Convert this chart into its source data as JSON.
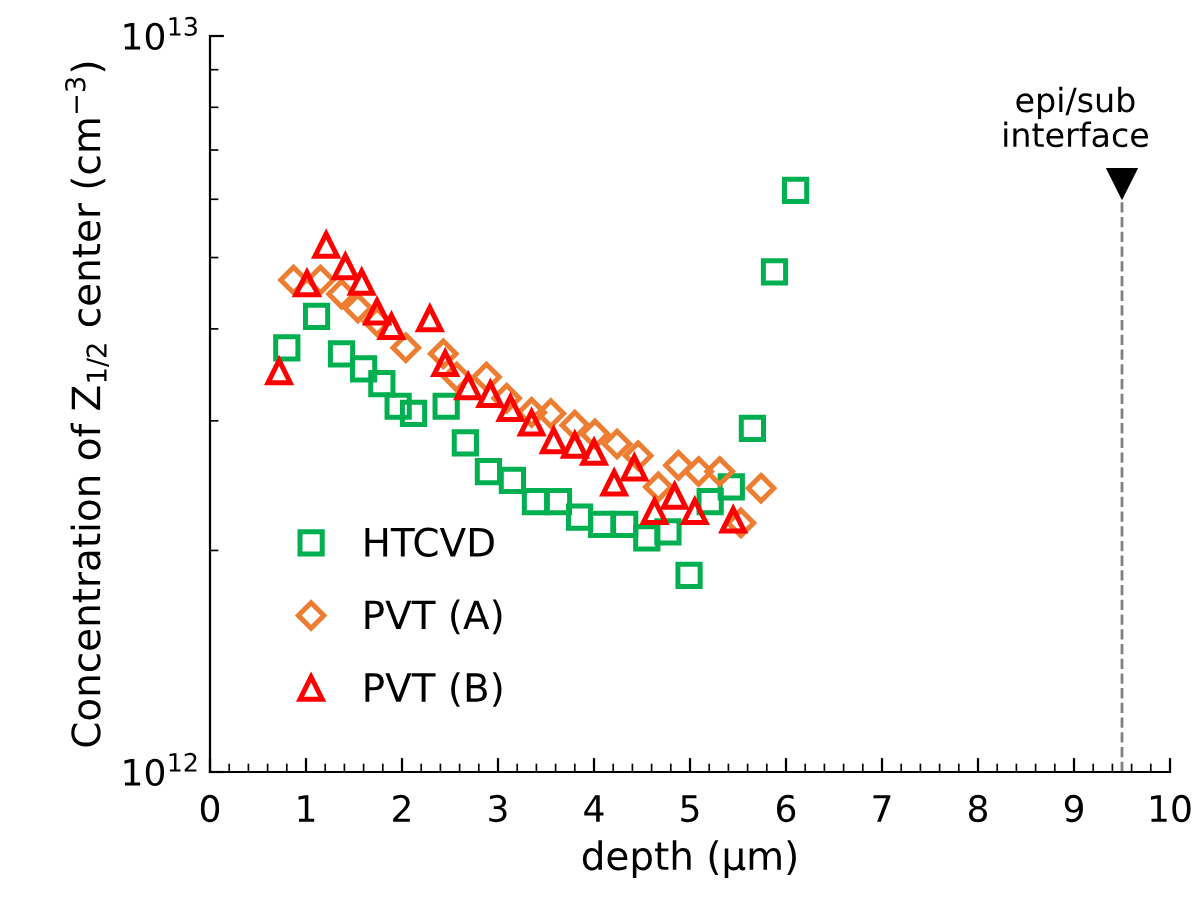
{
  "chart_data": {
    "type": "scatter",
    "xlabel": "depth (μm)",
    "ylabel": "Concentration of Z$_{1/2}$ center (cm$^{−3}$)",
    "log": "y",
    "xlim": [
      0,
      10
    ],
    "xticks": [
      0,
      1,
      2,
      3,
      4,
      5,
      6,
      7,
      8,
      9,
      10
    ],
    "ylim": [
      1000000000000.0,
      10000000000000.0
    ],
    "yticks": [
      {
        "value": 1000000000000.0,
        "label": "10$^{12}$"
      },
      {
        "value": 10000000000000.0,
        "label": "10$^{13}$"
      }
    ],
    "grid": false,
    "legend": "bottom left",
    "ref_lines": [
      {
        "axis": "x",
        "value": 9.5,
        "label": "epi/sub\ninterface",
        "color": "#808080",
        "line_style": "dashed"
      }
    ],
    "series": [
      {
        "name": "HTCVD",
        "color": "#00b050",
        "marker": "square",
        "x": [
          0.8,
          1.11,
          1.37,
          1.6,
          1.79,
          1.96,
          2.12,
          2.46,
          2.66,
          2.9,
          3.15,
          3.39,
          3.63,
          3.85,
          4.08,
          4.32,
          4.55,
          4.77,
          4.99,
          5.21,
          5.43,
          5.65,
          5.88,
          6.1
        ],
        "values": [
          3770000000000.0,
          4160000000000.0,
          3700000000000.0,
          3530000000000.0,
          3370000000000.0,
          3140000000000.0,
          3070000000000.0,
          3140000000000.0,
          2800000000000.0,
          2560000000000.0,
          2490000000000.0,
          2330000000000.0,
          2330000000000.0,
          2220000000000.0,
          2170000000000.0,
          2170000000000.0,
          2080000000000.0,
          2120000000000.0,
          1850000000000.0,
          2330000000000.0,
          2440000000000.0,
          2930000000000.0,
          4780000000000.0,
          6170000000000.0
        ]
      },
      {
        "name": "PVT (A)",
        "color": "#ed7d31",
        "marker": "diamond",
        "x": [
          0.87,
          1.15,
          1.37,
          1.54,
          1.74,
          2.04,
          2.43,
          2.57,
          2.88,
          3.09,
          3.35,
          3.55,
          3.8,
          4.01,
          4.24,
          4.46,
          4.67,
          4.88,
          5.09,
          5.31,
          5.53,
          5.74
        ],
        "values": [
          4660000000000.0,
          4660000000000.0,
          4460000000000.0,
          4270000000000.0,
          4090000000000.0,
          3770000000000.0,
          3700000000000.0,
          3440000000000.0,
          3440000000000.0,
          3220000000000.0,
          3080000000000.0,
          3070000000000.0,
          2960000000000.0,
          2880000000000.0,
          2790000000000.0,
          2690000000000.0,
          2440000000000.0,
          2610000000000.0,
          2560000000000.0,
          2560000000000.0,
          2180000000000.0,
          2430000000000.0
        ]
      },
      {
        "name": "PVT (B)",
        "color": "#ff0000",
        "marker": "triangle",
        "x": [
          0.72,
          1.01,
          1.21,
          1.41,
          1.58,
          1.74,
          1.89,
          2.29,
          2.45,
          2.69,
          2.92,
          3.13,
          3.35,
          3.58,
          3.8,
          4.0,
          4.21,
          4.42,
          4.63,
          4.84,
          5.05,
          5.45
        ],
        "values": [
          3500000000000.0,
          4610000000000.0,
          5200000000000.0,
          4860000000000.0,
          4630000000000.0,
          4220000000000.0,
          4030000000000.0,
          4130000000000.0,
          3590000000000.0,
          3340000000000.0,
          3260000000000.0,
          3120000000000.0,
          2980000000000.0,
          2820000000000.0,
          2780000000000.0,
          2720000000000.0,
          2470000000000.0,
          2590000000000.0,
          2260000000000.0,
          2370000000000.0,
          2260000000000.0,
          2200000000000.0
        ]
      }
    ]
  }
}
